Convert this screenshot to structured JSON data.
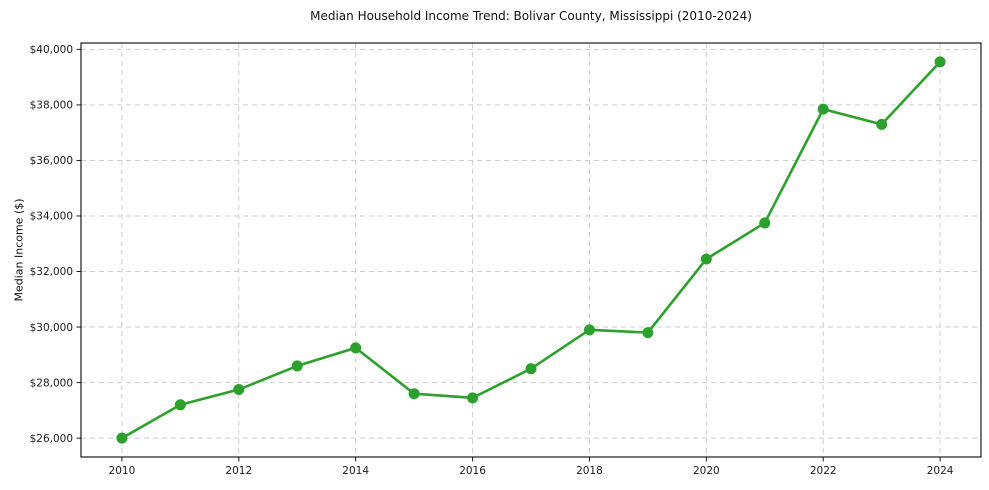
{
  "chart_data": {
    "type": "line",
    "title": "Median Household Income Trend: Bolivar County, Mississippi (2010-2024)",
    "xlabel": "",
    "ylabel": "Median Income ($)",
    "x": [
      2010,
      2011,
      2012,
      2013,
      2014,
      2015,
      2016,
      2017,
      2018,
      2019,
      2020,
      2021,
      2022,
      2023,
      2024
    ],
    "values": [
      26000,
      27200,
      27750,
      28600,
      29250,
      27600,
      27450,
      28500,
      29900,
      29800,
      32450,
      33750,
      37850,
      37300,
      39550
    ],
    "xticks": [
      2010,
      2012,
      2014,
      2016,
      2018,
      2020,
      2022,
      2024
    ],
    "yticks": [
      26000,
      28000,
      30000,
      32000,
      34000,
      36000,
      38000,
      40000
    ],
    "ytick_labels": [
      "$26,000",
      "$28,000",
      "$30,000",
      "$32,000",
      "$34,000",
      "$36,000",
      "$38,000",
      "$40,000"
    ],
    "xlim": [
      2009.3,
      2024.7
    ],
    "ylim": [
      25320,
      40230
    ],
    "grid": true,
    "grid_style": "dashed",
    "legend": "none",
    "marker": "circle",
    "colors": {
      "line": "#2ca02c",
      "marker": "#2ca02c",
      "grid": "#cdcdcd",
      "axis": "#1a1a1a",
      "background": "#ffffff",
      "text": "#111111"
    }
  }
}
